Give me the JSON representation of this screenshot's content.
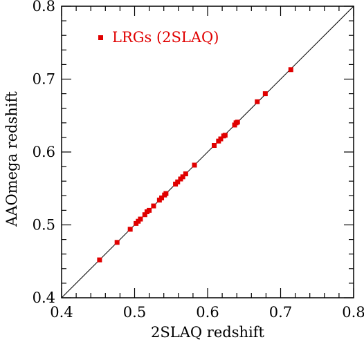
{
  "chart_data": {
    "type": "scatter",
    "title": "",
    "xlabel": "2SLAQ redshift",
    "ylabel": "AAOmega redshift",
    "xlim": [
      0.4,
      0.8
    ],
    "ylim": [
      0.4,
      0.8
    ],
    "xticks": [
      "0.4",
      "0.5",
      "0.6",
      "0.7",
      "0.8"
    ],
    "yticks": [
      "0.4",
      "0.5",
      "0.6",
      "0.7",
      "0.8"
    ],
    "grid": false,
    "legend_position": "top-left",
    "reference_line": "one-to-one (y = x)",
    "series": [
      {
        "name": "LRGs (2SLAQ)",
        "color": "#e00000",
        "marker": "square",
        "points": [
          {
            "x": 0.452,
            "y": 0.452
          },
          {
            "x": 0.476,
            "y": 0.476
          },
          {
            "x": 0.494,
            "y": 0.494
          },
          {
            "x": 0.502,
            "y": 0.502
          },
          {
            "x": 0.505,
            "y": 0.505
          },
          {
            "x": 0.508,
            "y": 0.508
          },
          {
            "x": 0.514,
            "y": 0.514
          },
          {
            "x": 0.517,
            "y": 0.518
          },
          {
            "x": 0.52,
            "y": 0.52
          },
          {
            "x": 0.526,
            "y": 0.526
          },
          {
            "x": 0.534,
            "y": 0.534
          },
          {
            "x": 0.537,
            "y": 0.537
          },
          {
            "x": 0.541,
            "y": 0.541
          },
          {
            "x": 0.543,
            "y": 0.543
          },
          {
            "x": 0.556,
            "y": 0.556
          },
          {
            "x": 0.559,
            "y": 0.559
          },
          {
            "x": 0.563,
            "y": 0.563
          },
          {
            "x": 0.566,
            "y": 0.566
          },
          {
            "x": 0.57,
            "y": 0.57
          },
          {
            "x": 0.582,
            "y": 0.582
          },
          {
            "x": 0.609,
            "y": 0.609
          },
          {
            "x": 0.615,
            "y": 0.615
          },
          {
            "x": 0.618,
            "y": 0.618
          },
          {
            "x": 0.622,
            "y": 0.622
          },
          {
            "x": 0.624,
            "y": 0.623
          },
          {
            "x": 0.637,
            "y": 0.637
          },
          {
            "x": 0.639,
            "y": 0.64
          },
          {
            "x": 0.641,
            "y": 0.641
          },
          {
            "x": 0.668,
            "y": 0.669
          },
          {
            "x": 0.679,
            "y": 0.68
          },
          {
            "x": 0.714,
            "y": 0.713
          }
        ]
      }
    ]
  }
}
